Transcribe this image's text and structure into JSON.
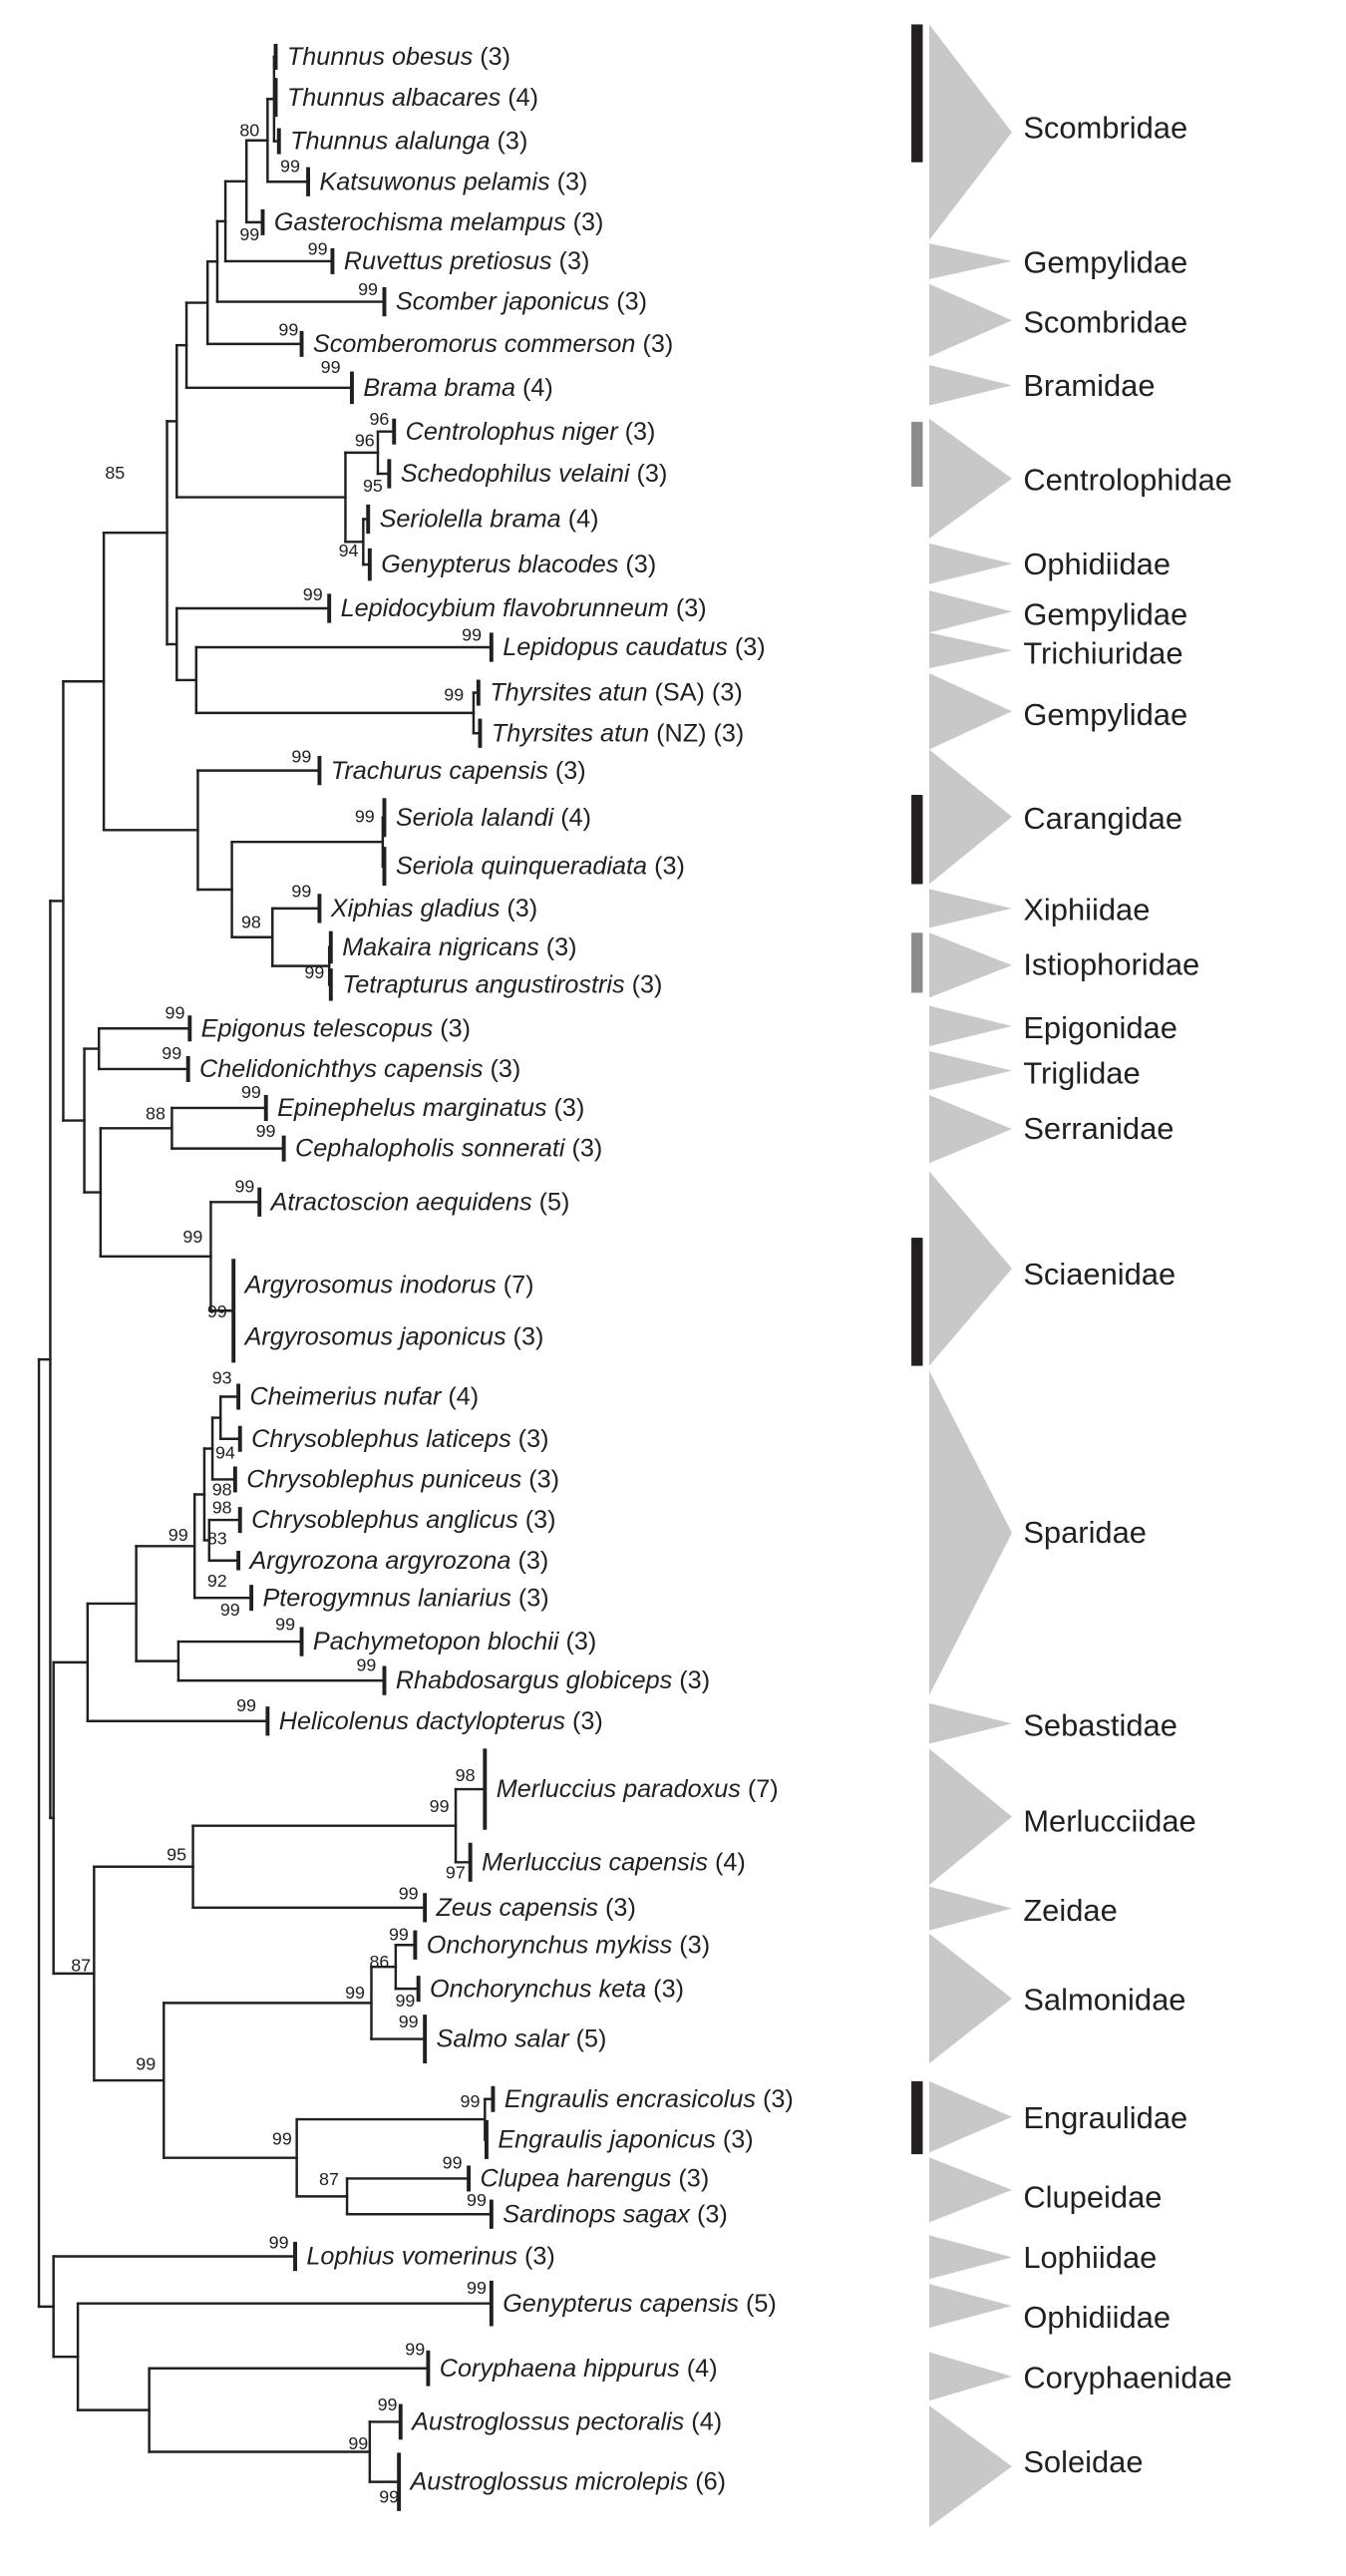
{
  "taxa": [
    {
      "name": "Thunnus obesus",
      "count": "(3)"
    },
    {
      "name": "Thunnus albacares",
      "count": "(4)"
    },
    {
      "name": "Thunnus alalunga",
      "count": "(3)"
    },
    {
      "name": "Katsuwonus pelamis",
      "count": "(3)"
    },
    {
      "name": "Gasterochisma melampus",
      "count": "(3)"
    },
    {
      "name": "Ruvettus pretiosus",
      "count": "(3)"
    },
    {
      "name": "Scomber japonicus",
      "count": "(3)"
    },
    {
      "name": "Scomberomorus commerson",
      "count": "(3)"
    },
    {
      "name": "Brama brama",
      "count": "(4)"
    },
    {
      "name": "Centrolophus niger",
      "count": "(3)"
    },
    {
      "name": "Schedophilus velaini",
      "count": "(3)"
    },
    {
      "name": "Seriolella brama",
      "count": "(4)"
    },
    {
      "name": "Genypterus blacodes",
      "count": "(3)"
    },
    {
      "name": "Lepidocybium flavobrunneum",
      "count": "(3)"
    },
    {
      "name": "Lepidopus caudatus",
      "count": "(3)"
    },
    {
      "name": "Thyrsites atun",
      "qualifier": "(SA)",
      "count": "(3)"
    },
    {
      "name": "Thyrsites atun",
      "qualifier": "(NZ)",
      "count": "(3)"
    },
    {
      "name": "Trachurus capensis",
      "count": "(3)"
    },
    {
      "name": "Seriola lalandi",
      "count": "(4)"
    },
    {
      "name": "Seriola quinqueradiata",
      "count": "(3)"
    },
    {
      "name": "Xiphias gladius",
      "count": "(3)"
    },
    {
      "name": "Makaira nigricans",
      "count": "(3)"
    },
    {
      "name": "Tetrapturus angustirostris",
      "count": "(3)"
    },
    {
      "name": "Epigonus telescopus",
      "count": "(3)"
    },
    {
      "name": "Chelidonichthys capensis",
      "count": "(3)"
    },
    {
      "name": "Epinephelus marginatus",
      "count": "(3)"
    },
    {
      "name": "Cephalopholis sonnerati",
      "count": "(3)"
    },
    {
      "name": "Atractoscion aequidens",
      "count": "(5)"
    },
    {
      "name": "Argyrosomus inodorus",
      "count": "(7)"
    },
    {
      "name": "Argyrosomus japonicus",
      "count": "(3)"
    },
    {
      "name": "Cheimerius nufar",
      "count": "(4)"
    },
    {
      "name": "Chrysoblephus laticeps",
      "count": "(3)"
    },
    {
      "name": "Chrysoblephus puniceus",
      "count": "(3)"
    },
    {
      "name": "Chrysoblephus anglicus",
      "count": "(3)"
    },
    {
      "name": "Argyrozona argyrozona",
      "count": "(3)"
    },
    {
      "name": "Pterogymnus laniarius",
      "count": "(3)"
    },
    {
      "name": "Pachymetopon blochii",
      "count": "(3)"
    },
    {
      "name": "Rhabdosargus globiceps",
      "count": "(3)"
    },
    {
      "name": "Helicolenus dactylopterus",
      "count": "(3)"
    },
    {
      "name": "Merluccius paradoxus",
      "count": "(7)"
    },
    {
      "name": "Merluccius capensis",
      "count": "(4)"
    },
    {
      "name": "Zeus capensis",
      "count": "(3)"
    },
    {
      "name": "Onchorynchus mykiss",
      "count": "(3)"
    },
    {
      "name": "Onchorynchus keta",
      "count": "(3)"
    },
    {
      "name": "Salmo salar",
      "count": "(5)"
    },
    {
      "name": "Engraulis encrasicolus",
      "count": "(3)"
    },
    {
      "name": "Engraulis japonicus",
      "count": "(3)"
    },
    {
      "name": "Clupea harengus",
      "count": "(3)"
    },
    {
      "name": "Sardinops sagax",
      "count": "(3)"
    },
    {
      "name": "Lophius vomerinus",
      "count": "(3)"
    },
    {
      "name": "Genypterus capensis",
      "count": "(5)"
    },
    {
      "name": "Coryphaena hippurus",
      "count": "(4)"
    },
    {
      "name": "Austroglossus pectoralis",
      "count": "(4)"
    },
    {
      "name": "Austroglossus microlepis",
      "count": "(6)"
    }
  ],
  "bootstrap_values": [
    "80",
    "99",
    "99",
    "99",
    "99",
    "99",
    "99",
    "96",
    "96",
    "95",
    "94",
    "85",
    "99",
    "99",
    "99",
    "99",
    "99",
    "98",
    "99",
    "99",
    "99",
    "99",
    "88",
    "99",
    "99",
    "99",
    "99",
    "99",
    "93",
    "94",
    "98",
    "98",
    "83",
    "92",
    "99",
    "99",
    "99",
    "99",
    "99",
    "98",
    "99",
    "97",
    "95",
    "99",
    "99",
    "86",
    "99",
    "99",
    "99",
    "87",
    "99",
    "99",
    "99",
    "87",
    "99",
    "99",
    "99",
    "99",
    "99",
    "99",
    "99",
    "99"
  ],
  "families": [
    {
      "name": "Scombridae",
      "bar": "black"
    },
    {
      "name": "Gempylidae"
    },
    {
      "name": "Scombridae"
    },
    {
      "name": "Bramidae"
    },
    {
      "name": "Centrolophidae",
      "bar": "gray"
    },
    {
      "name": "Ophidiidae"
    },
    {
      "name": "Gempylidae"
    },
    {
      "name": "Trichiuridae"
    },
    {
      "name": "Gempylidae"
    },
    {
      "name": "Carangidae",
      "bar": "black"
    },
    {
      "name": "Xiphiidae"
    },
    {
      "name": "Istiophoridae",
      "bar": "gray"
    },
    {
      "name": "Epigonidae"
    },
    {
      "name": "Triglidae"
    },
    {
      "name": "Serranidae"
    },
    {
      "name": "Sciaenidae",
      "bar": "black"
    },
    {
      "name": "Sparidae"
    },
    {
      "name": "Sebastidae"
    },
    {
      "name": "Merlucciidae"
    },
    {
      "name": "Zeidae"
    },
    {
      "name": "Salmonidae"
    },
    {
      "name": "Engraulidae",
      "bar": "black"
    },
    {
      "name": "Clupeidae"
    },
    {
      "name": "Lophiidae"
    },
    {
      "name": "Ophidiidae"
    },
    {
      "name": "Coryphaenidae"
    },
    {
      "name": "Soleidae"
    }
  ],
  "colors": {
    "line": "#231f20",
    "triangle": "#c8c8c8",
    "bar_black": "#231f20",
    "bar_gray": "#8c8c8c"
  }
}
